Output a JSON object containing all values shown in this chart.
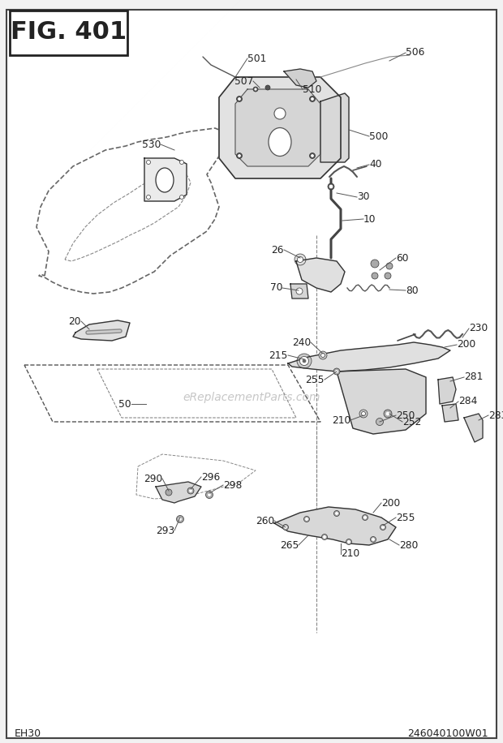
{
  "title": "FIG. 401",
  "bottom_left": "EH30",
  "bottom_right": "246040100W01",
  "watermark": "eReplacementParts.com",
  "fig_width": 6.2,
  "fig_height": 9.16,
  "dpi": 100,
  "bg_color": "#f2f2f2",
  "white": "#ffffff",
  "dark": "#222222",
  "mid": "#555555",
  "light": "#aaaaaa",
  "engine_color": "#e8e8e8",
  "part_color": "#d8d8d8",
  "line_color": "#333333"
}
